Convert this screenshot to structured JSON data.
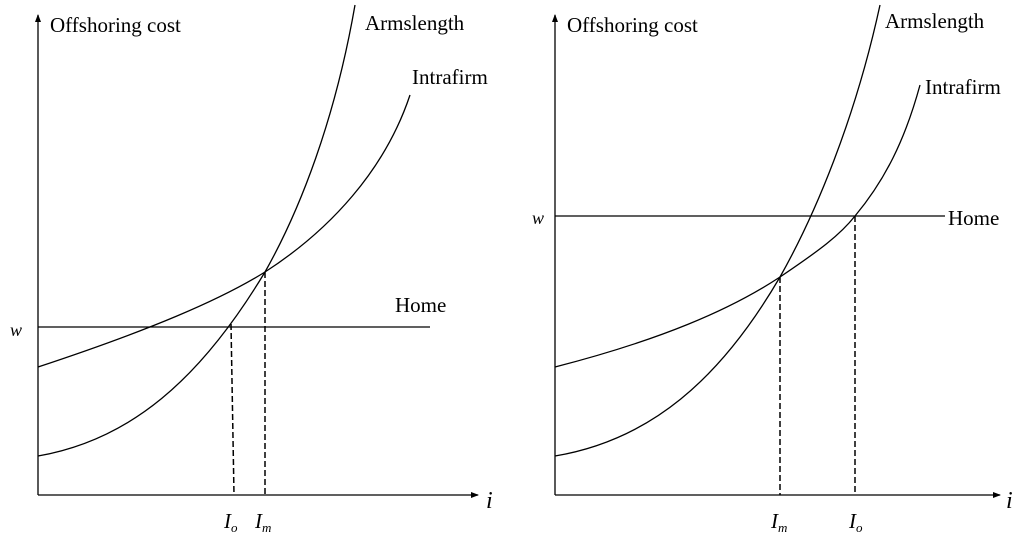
{
  "panels": [
    {
      "y_axis_label": "Offshoring cost",
      "x_axis_label": "i",
      "w_label": "w",
      "curves": {
        "armslength": "Armslength",
        "intrafirm": "Intrafirm",
        "home": "Home"
      },
      "markers": [
        {
          "main": "I",
          "sub": "o"
        },
        {
          "main": "I",
          "sub": "m"
        }
      ]
    },
    {
      "y_axis_label": "Offshoring cost",
      "x_axis_label": "i",
      "w_label": "w",
      "curves": {
        "armslength": "Armslength",
        "intrafirm": "Intrafirm",
        "home": "Home"
      },
      "markers": [
        {
          "main": "I",
          "sub": "m"
        },
        {
          "main": "I",
          "sub": "o"
        }
      ]
    }
  ]
}
